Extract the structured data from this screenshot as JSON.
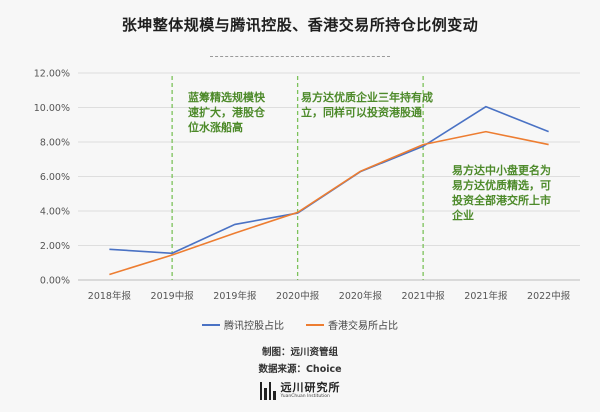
{
  "title": "张坤整体规模与腾讯控股、香港交易所持仓比例变动",
  "footer": {
    "maker": "制图：远川资管组",
    "source": "数据来源：Choice"
  },
  "logo": {
    "name": "远川研究所",
    "sub": "YuanChuan Institution"
  },
  "colors": {
    "tencent": "#4a72c4",
    "hkex": "#ed7d31",
    "annotation": "#4d8a2a",
    "divider": "#7cc25b"
  },
  "chart_data": {
    "type": "line",
    "categories": [
      "2018年报",
      "2019中报",
      "2019年报",
      "2020中报",
      "2020年报",
      "2021中报",
      "2021年报",
      "2022中报"
    ],
    "series": [
      {
        "name": "腾讯控股占比",
        "values": [
          1.78,
          1.55,
          3.22,
          3.88,
          6.28,
          7.75,
          10.05,
          8.6
        ]
      },
      {
        "name": "香港交易所占比",
        "values": [
          0.32,
          1.45,
          2.72,
          3.92,
          6.3,
          7.85,
          8.6,
          7.85
        ]
      }
    ],
    "y_ticks": [
      "0.00%",
      "2.00%",
      "4.00%",
      "6.00%",
      "8.00%",
      "10.00%",
      "12.00%"
    ],
    "ylim": [
      0,
      12
    ],
    "grid": true,
    "legend": "bottom",
    "dividers_after": [
      "2019中报",
      "2020中报",
      "2021中报"
    ],
    "annotations": [
      {
        "lines": [
          "蓝筹精选规模快",
          "速扩大，港股仓",
          "位水涨船高"
        ]
      },
      {
        "lines": [
          "易方达优质企业三年持有成",
          "立，同样可以投资港股通"
        ]
      },
      {
        "lines": [
          "易方达中小盘更名为",
          "易方达优质精选，可",
          "投资全部港交所上市",
          "企业"
        ]
      }
    ]
  }
}
